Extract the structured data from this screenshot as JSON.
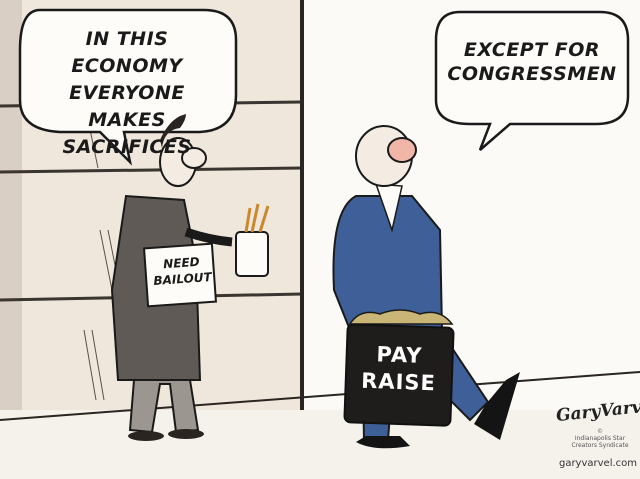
{
  "bubbles": {
    "left": [
      "IN THIS ECONOMY",
      "EVERYONE MAKES",
      "SACRIFICES"
    ],
    "right": [
      "EXCEPT FOR",
      "CONGRESSMEN"
    ]
  },
  "sign": [
    "NEED",
    "BAILOUT"
  ],
  "briefcase": [
    "PAY",
    "RAISE"
  ],
  "credits": {
    "signature": "GaryVarvel",
    "copyright": [
      "©",
      "Indianapolis Star",
      "Creators Syndicate"
    ],
    "website": "garyvarvel.com"
  },
  "colors": {
    "suit_blue": "#3f5f98",
    "wall_cream": "#efe6dc",
    "briefcase": "#1f1d1c",
    "bubble_fill": "#fdfcf8",
    "ink": "#1a1a1a"
  }
}
